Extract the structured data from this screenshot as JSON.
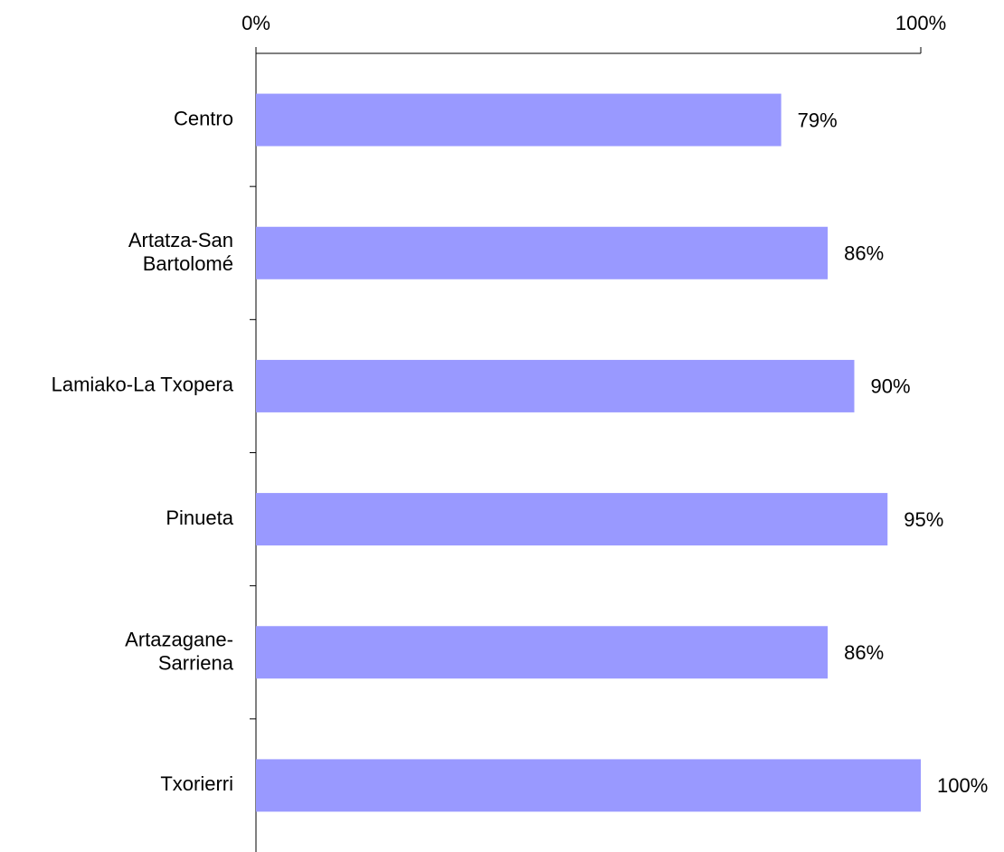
{
  "chart_data": {
    "type": "bar",
    "orientation": "horizontal",
    "categories": [
      "Centro",
      "Artatza-San\nBartolomé",
      "Lamiako-La Txopera",
      "Pinueta",
      "Artazagane-\nSarriena",
      "Txorierri"
    ],
    "values": [
      79,
      86,
      90,
      95,
      86,
      100
    ],
    "value_labels": [
      "79%",
      "86%",
      "90%",
      "95%",
      "86%",
      "100%"
    ],
    "color": "#9999ff",
    "xlim": [
      0,
      100
    ],
    "xticks": [
      {
        "value": 0,
        "label": "0%"
      },
      {
        "value": 100,
        "label": "100%"
      }
    ]
  }
}
